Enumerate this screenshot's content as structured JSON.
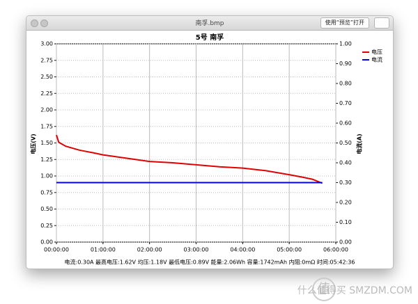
{
  "window": {
    "title": "南孚.bmp",
    "button": "使用“预览”打开"
  },
  "watermark": {
    "icon": "值",
    "text": "什么值得买 SMZDM.COM"
  },
  "chart_data": {
    "type": "line",
    "title": "5号 南孚",
    "y_label": "电压(V)",
    "y2_label": "电流(A)",
    "annotation": "电流:0.30A 最高电压:1.62V 均压:1.18V 最低电压:0.89V 能量:2.06Wh 容量:1742mAh 内阻:0mΩ 时间:05:42:36",
    "grid": true,
    "legend": "upper right",
    "xlim": [
      0,
      6
    ],
    "xticks": [
      {
        "value": 0,
        "label": "00:00:00"
      },
      {
        "value": 1,
        "label": "01:00:00"
      },
      {
        "value": 2,
        "label": "02:00:00"
      },
      {
        "value": 3,
        "label": "03:00:00"
      },
      {
        "value": 4,
        "label": "04:00:00"
      },
      {
        "value": 5,
        "label": "05:00:00"
      },
      {
        "value": 6,
        "label": "06:00:00"
      }
    ],
    "ylim": [
      0,
      3
    ],
    "yticks": [
      {
        "value": 0,
        "label": "0.00"
      },
      {
        "value": 0.25,
        "label": "0.25"
      },
      {
        "value": 0.5,
        "label": "0.50"
      },
      {
        "value": 0.75,
        "label": "0.75"
      },
      {
        "value": 1,
        "label": "1.00"
      },
      {
        "value": 1.25,
        "label": "1.25"
      },
      {
        "value": 1.5,
        "label": "1.50"
      },
      {
        "value": 1.75,
        "label": "1.75"
      },
      {
        "value": 2,
        "label": "2.00"
      },
      {
        "value": 2.25,
        "label": "2.25"
      },
      {
        "value": 2.5,
        "label": "2.50"
      },
      {
        "value": 2.75,
        "label": "2.75"
      },
      {
        "value": 3,
        "label": "3.00"
      }
    ],
    "y2lim": [
      0,
      1
    ],
    "y2ticks": [
      {
        "value": 0,
        "label": "0.00"
      },
      {
        "value": 0.1,
        "label": "0.10"
      },
      {
        "value": 0.2,
        "label": "0.20"
      },
      {
        "value": 0.3,
        "label": "0.30"
      },
      {
        "value": 0.4,
        "label": "0.40"
      },
      {
        "value": 0.5,
        "label": "0.50"
      },
      {
        "value": 0.6,
        "label": "0.60"
      },
      {
        "value": 0.7,
        "label": "0.70"
      },
      {
        "value": 0.8,
        "label": "0.80"
      },
      {
        "value": 0.9,
        "label": "0.90"
      },
      {
        "value": 1,
        "label": "1.00"
      }
    ],
    "series": [
      {
        "name": "电压",
        "color": "#e00000",
        "axis": "y",
        "x": [
          0,
          0.05,
          0.2,
          0.5,
          0.8,
          1.0,
          1.5,
          2.0,
          2.5,
          3.0,
          3.5,
          4.0,
          4.5,
          5.0,
          5.3,
          5.5,
          5.71
        ],
        "values": [
          1.62,
          1.51,
          1.45,
          1.39,
          1.35,
          1.32,
          1.27,
          1.22,
          1.2,
          1.17,
          1.14,
          1.12,
          1.08,
          1.02,
          0.98,
          0.95,
          0.89
        ]
      },
      {
        "name": "电流",
        "color": "#0000e0",
        "axis": "y2",
        "x": [
          0,
          5.71
        ],
        "values": [
          0.3,
          0.3
        ]
      }
    ]
  }
}
